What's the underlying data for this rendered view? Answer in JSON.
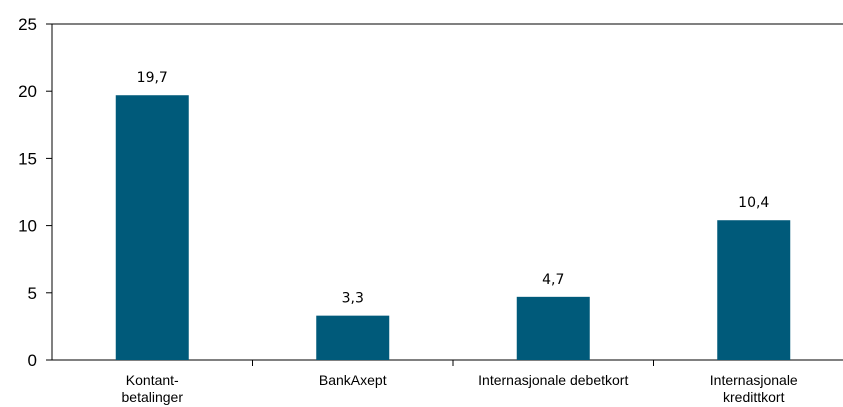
{
  "chart_data": {
    "type": "bar",
    "categories": [
      [
        "Kontant-",
        "betalinger"
      ],
      [
        "BankAxept"
      ],
      [
        "Internasjonale debetkort"
      ],
      [
        "Internasjonale",
        "kredittkort"
      ]
    ],
    "values": [
      19.7,
      3.3,
      4.7,
      10.4
    ],
    "data_labels": [
      "19,7",
      "3,3",
      "4,7",
      "10,4"
    ],
    "ylim": [
      0,
      25
    ],
    "yticks": [
      0,
      5,
      10,
      15,
      20,
      25
    ],
    "ytick_labels": [
      "0",
      "5",
      "10",
      "15",
      "20",
      "25"
    ],
    "title": "",
    "xlabel": "",
    "ylabel": "",
    "grid": false,
    "bar_color": "#005a7a"
  }
}
